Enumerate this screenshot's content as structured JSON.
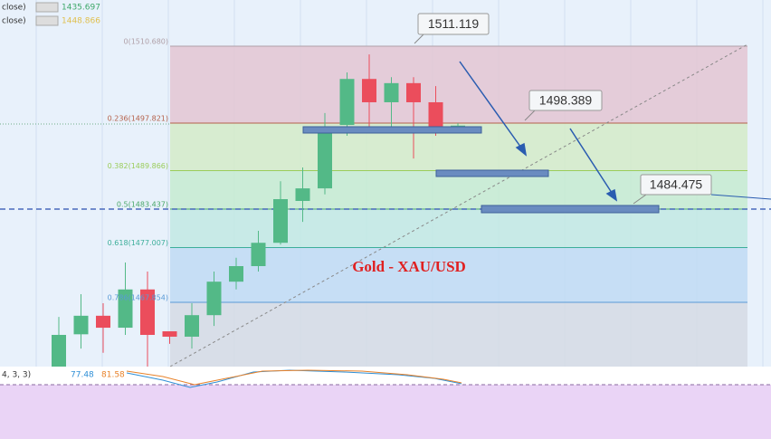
{
  "chart_data": {
    "type": "candlestick",
    "title": "Gold - XAU/USD",
    "categories": [
      null,
      null,
      null,
      null,
      null,
      null,
      null,
      null,
      null,
      null,
      null,
      null,
      null,
      null,
      null,
      null,
      null,
      null,
      null
    ],
    "open": [
      1457.1,
      1462.5,
      1465.6,
      1463.6,
      1470.0,
      1463.0,
      1462.1,
      1465.7,
      1471.3,
      1473.9,
      1477.8,
      1484.8,
      1486.9,
      1497.5,
      1505.2,
      1501.3,
      1504.5,
      1501.3,
      1496.9
    ],
    "high": [
      1465.4,
      1469.2,
      1467.7,
      1474.5,
      1473.0,
      1463.0,
      1467.7,
      1473.0,
      1475.3,
      1479.8,
      1488.1,
      1490.4,
      1499.5,
      1506.3,
      1509.3,
      1505.5,
      1505.5,
      1504.0,
      1497.8
    ],
    "low": [
      1457.2,
      1460.1,
      1459.4,
      1462.4,
      1457.1,
      1460.9,
      1460.1,
      1463.9,
      1470.0,
      1473.0,
      1477.5,
      1481.3,
      1485.9,
      1495.7,
      1497.2,
      1497.2,
      1491.9,
      1495.7,
      1496.8
    ],
    "close": [
      1462.4,
      1465.6,
      1463.6,
      1470.0,
      1462.4,
      1462.1,
      1465.7,
      1471.3,
      1473.9,
      1477.8,
      1485.1,
      1486.9,
      1497.2,
      1505.2,
      1501.3,
      1504.5,
      1501.3,
      1496.7,
      1497.4
    ],
    "up_color": "#53b987",
    "down_color": "#eb4d5c",
    "ylim": [
      1457.1,
      1518.4
    ],
    "fib_levels": [
      {
        "label": "0(1510.680)",
        "value": 1510.68,
        "color": "#b0a0a8",
        "zone_color": "#e3c6d2"
      },
      {
        "label": "0.236(1497.821)",
        "value": 1497.821,
        "color": "#b5614a",
        "zone_color": "#d3ebc8"
      },
      {
        "label": "0.382(1489.866)",
        "value": 1489.866,
        "color": "#9acc5a",
        "zone_color": "#c6ebd0"
      },
      {
        "label": "0.5(1483.437)",
        "value": 1483.437,
        "color": "#4aa86a",
        "zone_color": "#c2e9e3"
      },
      {
        "label": "0.618(1477.007)",
        "value": 1477.007,
        "color": "#3cae9a",
        "zone_color": "#bfdaf3"
      },
      {
        "label": "0.786(1467.854)",
        "value": 1467.854,
        "color": "#5a9ad6",
        "zone_color": "#d5dbe4"
      }
    ],
    "callouts": [
      1511.119,
      1498.389,
      1484.475
    ],
    "indicators": [
      {
        "label": "close)",
        "value": 1435.697,
        "color": "#3fa86a"
      },
      {
        "label": "close)",
        "value": 1448.866,
        "color": "#e0c050"
      }
    ],
    "oscillator": {
      "label": "4, 3, 3)",
      "values": [
        77.48,
        81.58
      ],
      "colors": [
        "#2f8fd6",
        "#e8822a"
      ]
    }
  }
}
